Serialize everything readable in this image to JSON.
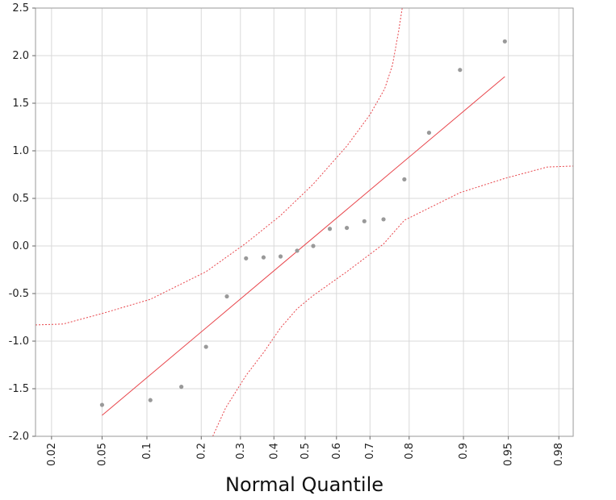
{
  "chart_data": {
    "type": "scatter",
    "title": "",
    "xlabel": "Normal Quantile",
    "ylabel": "",
    "grid": true,
    "ylim": [
      -2.0,
      2.5
    ],
    "yticks": [
      -2.0,
      -1.5,
      -1.0,
      -0.5,
      0.0,
      0.5,
      1.0,
      1.5,
      2.0,
      2.5
    ],
    "ytick_labels": [
      "-2.0",
      "-1.5",
      "-1.0",
      "-0.5",
      "0.0",
      "0.5",
      "1.0",
      "1.5",
      "2.0",
      "2.5"
    ],
    "x_scale": "normal-probability",
    "xlim": [
      0.0145,
      0.985
    ],
    "xticks": [
      0.02,
      0.05,
      0.1,
      0.2,
      0.3,
      0.4,
      0.5,
      0.6,
      0.7,
      0.8,
      0.9,
      0.95,
      0.98
    ],
    "xtick_labels": [
      "0.02",
      "0.05",
      "0.1",
      "0.2",
      "0.3",
      "0.4",
      "0.5",
      "0.6",
      "0.7",
      "0.8",
      "0.9",
      "0.95",
      "0.98"
    ],
    "colors": {
      "points": "#999999",
      "fit_line": "#e8454b",
      "confidence_bands": "#e8454b",
      "grid": "#d9d9d9",
      "frame": "#9a9a9a"
    },
    "points": [
      {
        "x": 0.05,
        "y": -1.67
      },
      {
        "x": 0.105,
        "y": -1.62
      },
      {
        "x": 0.158,
        "y": -1.48
      },
      {
        "x": 0.211,
        "y": -1.06
      },
      {
        "x": 0.263,
        "y": -0.53
      },
      {
        "x": 0.316,
        "y": -0.13
      },
      {
        "x": 0.368,
        "y": -0.12
      },
      {
        "x": 0.421,
        "y": -0.11
      },
      {
        "x": 0.474,
        "y": -0.05
      },
      {
        "x": 0.526,
        "y": 0.0
      },
      {
        "x": 0.579,
        "y": 0.18
      },
      {
        "x": 0.632,
        "y": 0.19
      },
      {
        "x": 0.684,
        "y": 0.26
      },
      {
        "x": 0.737,
        "y": 0.28
      },
      {
        "x": 0.789,
        "y": 0.7
      },
      {
        "x": 0.842,
        "y": 1.19
      },
      {
        "x": 0.895,
        "y": 1.85
      },
      {
        "x": 0.947,
        "y": 2.15
      }
    ],
    "fit_line": [
      {
        "x": 0.05,
        "y": -1.78
      },
      {
        "x": 0.947,
        "y": 1.78
      }
    ],
    "upper_band": [
      {
        "x": 0.0145,
        "y": -0.83
      },
      {
        "x": 0.025,
        "y": -0.82
      },
      {
        "x": 0.05,
        "y": -0.71
      },
      {
        "x": 0.105,
        "y": -0.56
      },
      {
        "x": 0.211,
        "y": -0.27
      },
      {
        "x": 0.316,
        "y": 0.03
      },
      {
        "x": 0.421,
        "y": 0.32
      },
      {
        "x": 0.526,
        "y": 0.65
      },
      {
        "x": 0.632,
        "y": 1.05
      },
      {
        "x": 0.7,
        "y": 1.38
      },
      {
        "x": 0.74,
        "y": 1.65
      },
      {
        "x": 0.76,
        "y": 1.9
      },
      {
        "x": 0.775,
        "y": 2.25
      },
      {
        "x": 0.784,
        "y": 2.5
      }
    ],
    "lower_band": [
      {
        "x": 0.227,
        "y": -2.0
      },
      {
        "x": 0.26,
        "y": -1.7
      },
      {
        "x": 0.316,
        "y": -1.36
      },
      {
        "x": 0.368,
        "y": -1.12
      },
      {
        "x": 0.421,
        "y": -0.86
      },
      {
        "x": 0.474,
        "y": -0.66
      },
      {
        "x": 0.526,
        "y": -0.52
      },
      {
        "x": 0.632,
        "y": -0.27
      },
      {
        "x": 0.737,
        "y": 0.02
      },
      {
        "x": 0.789,
        "y": 0.27
      },
      {
        "x": 0.895,
        "y": 0.56
      },
      {
        "x": 0.947,
        "y": 0.71
      },
      {
        "x": 0.975,
        "y": 0.83
      },
      {
        "x": 0.985,
        "y": 0.84
      }
    ]
  }
}
